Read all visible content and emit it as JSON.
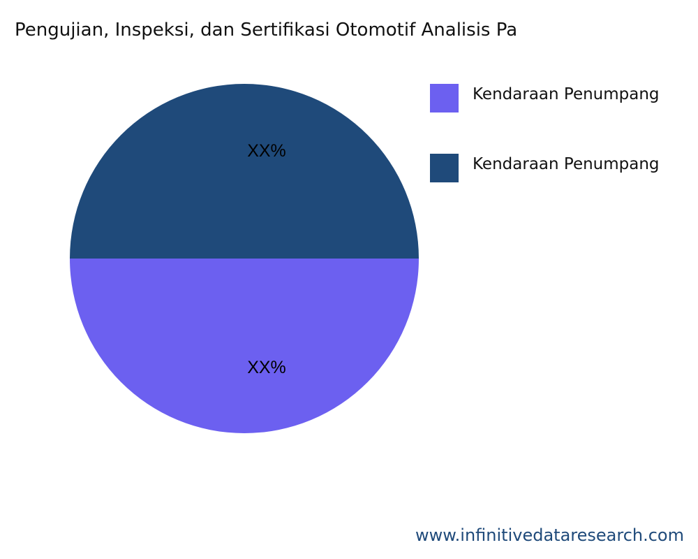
{
  "chart_data": {
    "type": "pie",
    "title": "Pengujian, Inspeksi, dan Sertifikasi Otomotif Analisis Pa",
    "slices": [
      {
        "name": "Kendaraan Penumpang",
        "value": 50,
        "label": "XX%",
        "color": "#6c60f0"
      },
      {
        "name": "Kendaraan Penumpang",
        "value": 50,
        "label": "XX%",
        "color": "#1f4a7a"
      }
    ],
    "legend_position": "right"
  },
  "footer": "www.infinitivedataresearch.com"
}
